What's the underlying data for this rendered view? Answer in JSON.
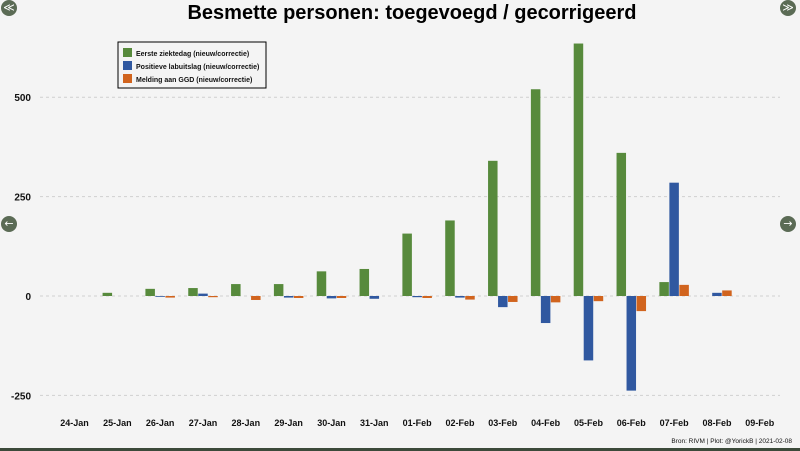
{
  "chart_data": {
    "type": "bar",
    "title": "Besmette personen: toegevoegd / gecorrigeerd",
    "categories": [
      "24-Jan",
      "25-Jan",
      "26-Jan",
      "27-Jan",
      "28-Jan",
      "29-Jan",
      "30-Jan",
      "31-Jan",
      "01-Feb",
      "02-Feb",
      "03-Feb",
      "04-Feb",
      "05-Feb",
      "06-Feb",
      "07-Feb",
      "08-Feb",
      "09-Feb"
    ],
    "series": [
      {
        "name": "Eerste ziektedag (nieuw/correctie)",
        "color": "#578a3c",
        "values": [
          0,
          8,
          18,
          20,
          30,
          30,
          62,
          68,
          157,
          190,
          340,
          520,
          635,
          360,
          35,
          0,
          0
        ]
      },
      {
        "name": "Positieve labuitslag (nieuw/correctie)",
        "color": "#3058a0",
        "values": [
          0,
          0,
          -2,
          6,
          0,
          -4,
          -6,
          -7,
          -3,
          -4,
          -28,
          -68,
          -162,
          -238,
          285,
          8,
          0
        ]
      },
      {
        "name": "Melding aan GGD (nieuw/correctie)",
        "color": "#d1641e",
        "values": [
          0,
          0,
          -4,
          -3,
          -10,
          -5,
          -5,
          0,
          -5,
          -9,
          -15,
          -16,
          -13,
          -38,
          28,
          14,
          0
        ]
      }
    ],
    "yticks": [
      500,
      250,
      0,
      -250
    ],
    "ylim": [
      -270,
      650
    ],
    "grid": true,
    "legend_position": "top-left",
    "source": "Bron: RIVM | Plot: @YorickB | 2021-02-08"
  },
  "nav": {
    "top_left_icon": "collapse-icon",
    "top_right_icon": "expand-icon",
    "prev_icon": "arrow-left-icon",
    "next_icon": "arrow-right-icon"
  }
}
